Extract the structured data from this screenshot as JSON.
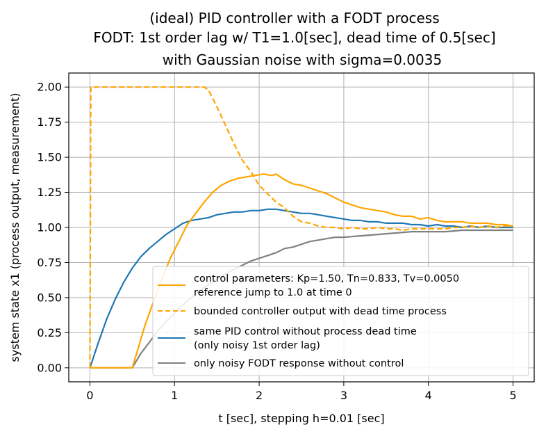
{
  "chart_data": {
    "type": "line",
    "title_lines": [
      "(ideal) PID controller with a FODT process",
      "FODT: 1st order lag w/ T1=1.0[sec], dead time of 0.5[sec]",
      "with Gaussian noise with sigma=0.0035"
    ],
    "xlabel": "t [sec], stepping h=0.01 [sec]",
    "ylabel": "system state x1 (process output, measurement)",
    "xlim": [
      -0.25,
      5.25
    ],
    "ylim": [
      -0.1,
      2.1
    ],
    "xticks": [
      0,
      1,
      2,
      3,
      4,
      5
    ],
    "xtick_labels": [
      "0",
      "1",
      "2",
      "3",
      "4",
      "5"
    ],
    "yticks": [
      0.0,
      0.25,
      0.5,
      0.75,
      1.0,
      1.25,
      1.5,
      1.75,
      2.0
    ],
    "ytick_labels": [
      "0.00",
      "0.25",
      "0.50",
      "0.75",
      "1.00",
      "1.25",
      "1.50",
      "1.75",
      "2.00"
    ],
    "grid": true,
    "legend_position": "lower-right",
    "series": [
      {
        "name": "control parameters: Kp=1.50, Tn=0.833, Tv=0.0050",
        "name2": "reference jump to 1.0 at time 0",
        "color": "#ffa500",
        "style": "solid",
        "x": [
          0,
          0.5,
          0.55,
          0.65,
          0.75,
          0.85,
          0.95,
          1.05,
          1.15,
          1.25,
          1.35,
          1.45,
          1.55,
          1.65,
          1.75,
          1.85,
          1.95,
          2.05,
          2.15,
          2.2,
          2.3,
          2.4,
          2.5,
          2.6,
          2.7,
          2.8,
          2.9,
          3.0,
          3.1,
          3.2,
          3.3,
          3.4,
          3.5,
          3.6,
          3.7,
          3.8,
          3.9,
          4.0,
          4.1,
          4.2,
          4.3,
          4.4,
          4.5,
          4.6,
          4.7,
          4.8,
          4.9,
          5.0
        ],
        "y": [
          0,
          0,
          0.1,
          0.3,
          0.47,
          0.63,
          0.78,
          0.9,
          1.02,
          1.1,
          1.18,
          1.25,
          1.3,
          1.33,
          1.35,
          1.36,
          1.37,
          1.38,
          1.37,
          1.38,
          1.34,
          1.31,
          1.3,
          1.28,
          1.26,
          1.24,
          1.21,
          1.18,
          1.16,
          1.14,
          1.13,
          1.12,
          1.11,
          1.09,
          1.08,
          1.08,
          1.06,
          1.07,
          1.05,
          1.04,
          1.04,
          1.04,
          1.03,
          1.03,
          1.03,
          1.02,
          1.02,
          1.01
        ]
      },
      {
        "name": "bounded controller output with dead time process",
        "color": "#ffa500",
        "style": "dashed",
        "x": [
          0,
          0.01,
          0.02,
          1.35,
          1.4,
          1.5,
          1.6,
          1.7,
          1.8,
          1.9,
          2.0,
          2.1,
          2.2,
          2.3,
          2.4,
          2.5,
          2.6,
          2.7,
          2.8,
          2.9,
          3.0,
          3.1,
          3.2,
          3.3,
          3.4,
          3.5,
          3.6,
          3.7,
          3.8,
          3.9,
          4.0,
          4.1,
          4.2,
          4.3,
          4.4,
          4.5,
          4.6,
          4.7,
          4.8,
          4.9,
          5.0
        ],
        "y": [
          0,
          2.0,
          2.0,
          2.0,
          1.98,
          1.86,
          1.73,
          1.6,
          1.48,
          1.4,
          1.3,
          1.24,
          1.18,
          1.14,
          1.08,
          1.04,
          1.03,
          1.01,
          1.0,
          1.0,
          0.99,
          1.0,
          0.99,
          0.99,
          1.0,
          0.99,
          0.99,
          0.98,
          0.99,
          0.99,
          0.99,
          0.99,
          0.99,
          1.0,
          1.0,
          1.01,
          1.0,
          1.01,
          1.0,
          1.01,
          1.01
        ]
      },
      {
        "name": "same PID control without process dead time",
        "name2": "(only noisy 1st order lag)",
        "color": "#1f77b4",
        "style": "solid",
        "x": [
          0,
          0.1,
          0.2,
          0.3,
          0.4,
          0.5,
          0.6,
          0.7,
          0.8,
          0.9,
          1.0,
          1.1,
          1.2,
          1.3,
          1.4,
          1.5,
          1.6,
          1.7,
          1.8,
          1.9,
          2.0,
          2.1,
          2.2,
          2.3,
          2.4,
          2.5,
          2.6,
          2.7,
          2.8,
          2.9,
          3.0,
          3.1,
          3.2,
          3.3,
          3.4,
          3.5,
          3.6,
          3.7,
          3.8,
          3.9,
          4.0,
          4.1,
          4.2,
          4.3,
          4.4,
          4.5,
          4.6,
          4.7,
          4.8,
          4.9,
          5.0
        ],
        "y": [
          0,
          0.18,
          0.35,
          0.49,
          0.61,
          0.71,
          0.79,
          0.85,
          0.9,
          0.95,
          0.99,
          1.03,
          1.05,
          1.06,
          1.07,
          1.09,
          1.1,
          1.11,
          1.11,
          1.12,
          1.12,
          1.13,
          1.13,
          1.12,
          1.11,
          1.1,
          1.1,
          1.09,
          1.08,
          1.07,
          1.06,
          1.05,
          1.05,
          1.04,
          1.04,
          1.03,
          1.03,
          1.03,
          1.02,
          1.02,
          1.01,
          1.02,
          1.01,
          1.01,
          1.0,
          1.01,
          1.0,
          1.01,
          1.0,
          1.0,
          1.0
        ]
      },
      {
        "name": "only noisy FODT response without control",
        "color": "#808080",
        "style": "solid",
        "x": [
          0,
          0.5,
          0.6,
          0.7,
          0.8,
          0.9,
          1.0,
          1.1,
          1.2,
          1.3,
          1.4,
          1.5,
          1.6,
          1.7,
          1.8,
          1.9,
          2.0,
          2.1,
          2.2,
          2.3,
          2.4,
          2.5,
          2.6,
          2.7,
          2.8,
          2.9,
          3.0,
          3.2,
          3.4,
          3.6,
          3.8,
          4.0,
          4.2,
          4.4,
          4.6,
          4.8,
          5.0
        ],
        "y": [
          0,
          0,
          0.1,
          0.18,
          0.26,
          0.33,
          0.39,
          0.45,
          0.5,
          0.55,
          0.59,
          0.63,
          0.67,
          0.7,
          0.73,
          0.76,
          0.78,
          0.8,
          0.82,
          0.85,
          0.86,
          0.88,
          0.9,
          0.91,
          0.92,
          0.93,
          0.93,
          0.94,
          0.95,
          0.96,
          0.97,
          0.97,
          0.97,
          0.98,
          0.98,
          0.98,
          0.98
        ]
      }
    ]
  }
}
